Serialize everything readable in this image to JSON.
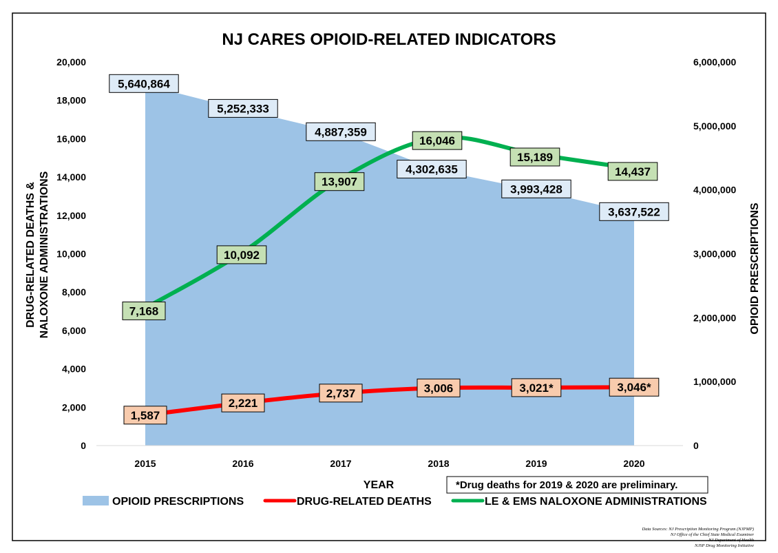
{
  "colors": {
    "prescriptions": "#9DC3E6",
    "deaths": "#FF0000",
    "naloxone": "#00B050",
    "rx_label_bg": "#DEEBF7",
    "death_label_bg": "#F8CBAD",
    "nalox_label_bg": "#C5E0B4"
  },
  "chart_data": {
    "type": "area+line",
    "title": "NJ CARES OPIOID-RELATED INDICATORS",
    "xlabel": "YEAR",
    "ylabel_left_line1": "DRUG-RELATED DEATHS &",
    "ylabel_left_line2": "NALOXONE ADMINISTRATIONS",
    "ylabel_right": "OPIOID PRESCRIPTIONS",
    "categories": [
      "2015",
      "2016",
      "2017",
      "2018",
      "2019",
      "2020"
    ],
    "y_left": {
      "lim": [
        0,
        20000
      ],
      "ticks": [
        0,
        2000,
        4000,
        6000,
        8000,
        10000,
        12000,
        14000,
        16000,
        18000,
        20000
      ],
      "tick_labels": [
        "0",
        "2,000",
        "4,000",
        "6,000",
        "8,000",
        "10,000",
        "12,000",
        "14,000",
        "16,000",
        "18,000",
        "20,000"
      ]
    },
    "y_right": {
      "lim": [
        0,
        6000000
      ],
      "ticks": [
        0,
        1000000,
        2000000,
        3000000,
        4000000,
        5000000,
        6000000
      ],
      "tick_labels": [
        "0",
        "1,000,000",
        "2,000,000",
        "3,000,000",
        "4,000,000",
        "5,000,000",
        "6,000,000"
      ]
    },
    "series": [
      {
        "name": "OPIOID PRESCRIPTIONS",
        "kind": "area",
        "axis": "right",
        "values": [
          5640864,
          5252333,
          4887359,
          4302635,
          3993428,
          3637522
        ],
        "labels": [
          "5,640,864",
          "5,252,333",
          "4,887,359",
          "4,302,635",
          "3,993,428",
          "3,637,522"
        ]
      },
      {
        "name": "DRUG-RELATED DEATHS",
        "kind": "line",
        "axis": "left",
        "values": [
          1587,
          2221,
          2737,
          3006,
          3021,
          3046
        ],
        "labels": [
          "1,587",
          "2,221",
          "2,737",
          "3,006",
          "3,021*",
          "3,046*"
        ]
      },
      {
        "name": "LE & EMS NALOXONE ADMINISTRATIONS",
        "kind": "line",
        "axis": "left",
        "values": [
          7168,
          10092,
          13907,
          16046,
          15189,
          14437
        ],
        "labels": [
          "7,168",
          "10,092",
          "13,907",
          "16,046",
          "15,189",
          "14,437"
        ]
      }
    ],
    "legend_position": "bottom",
    "grid": false,
    "note": "*Drug deaths for 2019 & 2020 are preliminary.",
    "sources": [
      "Data Sources: NJ Prescription Monitoring Program (NJPMP)",
      "NJ Office of the Chief State Medical Examiner",
      "NJ Department of Health",
      "NJSP Drug Monitoring Initiative"
    ]
  }
}
